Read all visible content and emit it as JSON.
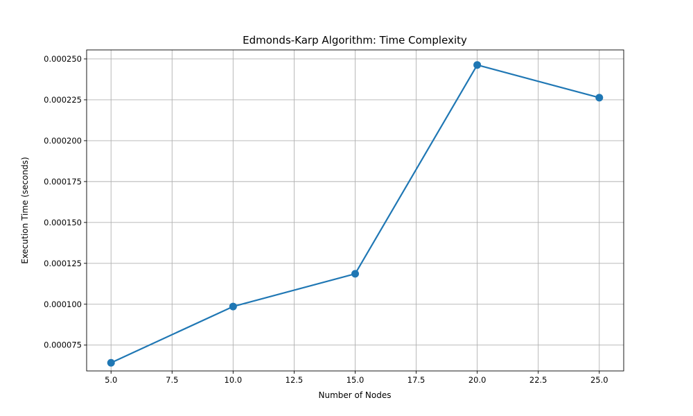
{
  "chart_data": {
    "type": "line",
    "title": "Edmonds-Karp Algorithm: Time Complexity",
    "xlabel": "Number of Nodes",
    "ylabel": "Execution Time (seconds)",
    "xlim": [
      4.0,
      26.0
    ],
    "ylim": [
      5.92e-05,
      0.0002555
    ],
    "xticks": [
      5.0,
      7.5,
      10.0,
      12.5,
      15.0,
      17.5,
      20.0,
      22.5,
      25.0
    ],
    "xtick_labels": [
      "5.0",
      "7.5",
      "10.0",
      "12.5",
      "15.0",
      "17.5",
      "20.0",
      "22.5",
      "25.0"
    ],
    "yticks": [
      7.5e-05,
      0.0001,
      0.000125,
      0.00015,
      0.000175,
      0.0002,
      0.000225,
      0.00025
    ],
    "ytick_labels": [
      "0.000075",
      "0.000100",
      "0.000125",
      "0.000150",
      "0.000175",
      "0.000200",
      "0.000225",
      "0.000250"
    ],
    "grid": true,
    "series": [
      {
        "x": [
          5,
          10,
          15,
          20,
          25
        ],
        "values": [
          6.42e-05,
          9.86e-05,
          0.0001186,
          0.0002463,
          0.0002263
        ],
        "color": "#1f77b4",
        "marker": "circle"
      }
    ]
  }
}
